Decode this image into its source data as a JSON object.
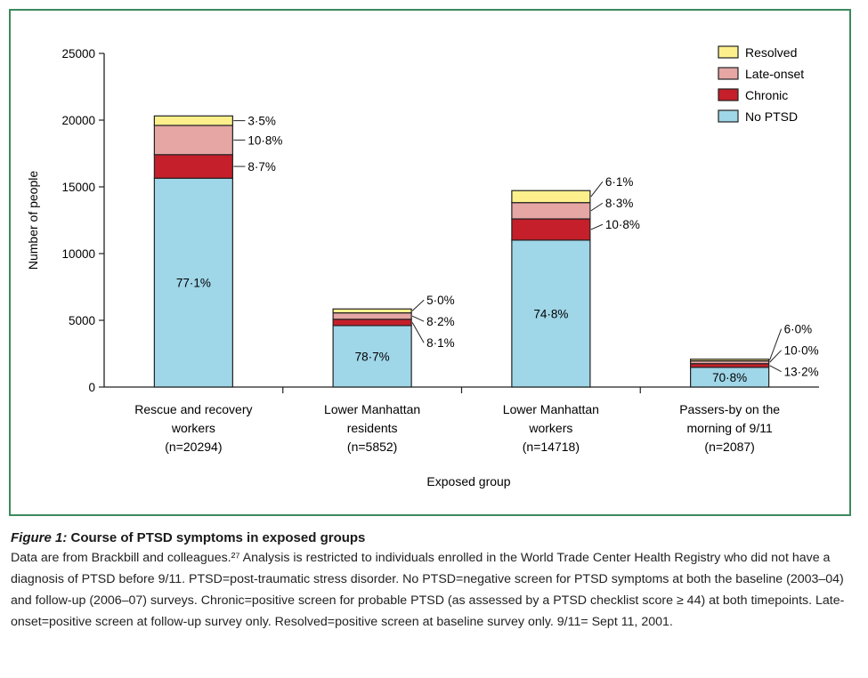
{
  "colors": {
    "No PTSD": "#9fd6e8",
    "Chronic": "#c41f2a",
    "Late-onset": "#e5a6a4",
    "Resolved": "#fdf08c",
    "frame": "#3c8a5f"
  },
  "chart_data": {
    "type": "bar",
    "stacked": true,
    "xlabel": "Exposed group",
    "ylabel": "Number of people",
    "ylim": [
      0,
      25000
    ],
    "yticks": [
      "0",
      "5000",
      "10000",
      "15000",
      "20000",
      "25000"
    ],
    "grid": false,
    "legend_position": "top-right",
    "legend": [
      "Resolved",
      "Late-onset",
      "Chronic",
      "No PTSD"
    ],
    "categories": [
      {
        "lines": [
          "Rescue and recovery",
          "workers",
          "(n=20294)"
        ],
        "total": 20294
      },
      {
        "lines": [
          "Lower Manhattan",
          "residents",
          "(n=5852)"
        ],
        "total": 5852
      },
      {
        "lines": [
          "Lower Manhattan",
          "workers",
          "(n=14718)"
        ],
        "total": 14718
      },
      {
        "lines": [
          "Passers-by on the",
          "morning of 9/11",
          "(n=2087)"
        ],
        "total": 2087
      }
    ],
    "series": [
      {
        "name": "No PTSD",
        "percent": [
          77.1,
          78.7,
          74.8,
          70.8
        ],
        "labels": [
          "77·1%",
          "78·7%",
          "74·8%",
          "70·8%"
        ]
      },
      {
        "name": "Chronic",
        "percent": [
          8.7,
          8.1,
          10.8,
          13.2
        ],
        "labels": [
          "8·7%",
          "8·1%",
          "10·8%",
          "13·2%"
        ]
      },
      {
        "name": "Late-onset",
        "percent": [
          10.8,
          8.2,
          8.3,
          10.0
        ],
        "labels": [
          "10·8%",
          "8·2%",
          "8·3%",
          "10·0%"
        ]
      },
      {
        "name": "Resolved",
        "percent": [
          3.5,
          5.0,
          6.1,
          6.0
        ],
        "labels": [
          "3·5%",
          "5·0%",
          "6·1%",
          "6·0%"
        ]
      }
    ]
  },
  "caption": {
    "figure_label": "Figure 1:",
    "title": " Course of PTSD symptoms in exposed groups",
    "body": "Data are from Brackbill and colleagues.²⁷ Analysis is restricted to individuals enrolled in the World Trade Center Health Registry who did not have a diagnosis of PTSD before 9/11. PTSD=post-traumatic stress disorder. No PTSD=negative screen for PTSD symptoms at both the baseline (2003–04) and follow-up (2006–07) surveys. Chronic=positive screen for probable PTSD (as assessed by a PTSD checklist score ≥ 44) at both timepoints. Late-onset=positive screen at follow-up survey only. Resolved=positive screen at baseline survey only. 9/11= Sept 11, 2001."
  }
}
